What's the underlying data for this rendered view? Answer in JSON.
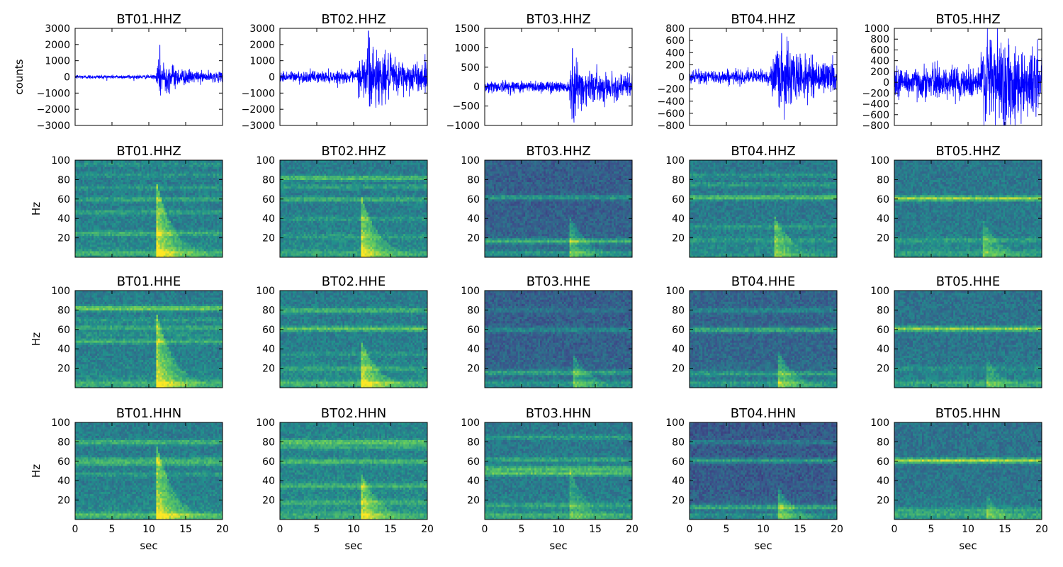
{
  "chart_data": {
    "type": "grid_of_plots",
    "stations": [
      "BT01",
      "BT02",
      "BT03",
      "BT04",
      "BT05"
    ],
    "x": {
      "label": "sec",
      "range": [
        0,
        20
      ],
      "ticks": [
        "0",
        "5",
        "10",
        "15",
        "20"
      ]
    },
    "rows": [
      {
        "type": "line",
        "component": "HHZ",
        "ylabel": "counts",
        "series_color": "#0000ff",
        "panels": [
          {
            "title": "BT01.HHZ",
            "ylim": [
              -3000,
              3000
            ],
            "yticks": [
              "−3000",
              "−2000",
              "−1000",
              "0",
              "1000",
              "2000",
              "3000"
            ],
            "signal": {
              "noise": 120,
              "onset": 11.0,
              "peak": 2000,
              "peak_at": 11.5,
              "decay": 2.0,
              "coda": 150
            }
          },
          {
            "title": "BT02.HHZ",
            "ylim": [
              -3000,
              3000
            ],
            "yticks": [
              "−3000",
              "−2000",
              "−1000",
              "0",
              "1000",
              "2000",
              "3000"
            ],
            "signal": {
              "noise": 350,
              "onset": 10.5,
              "peak": 2900,
              "peak_at": 12.0,
              "decay": 2.5,
              "coda": 400
            }
          },
          {
            "title": "BT03.HHZ",
            "ylim": [
              -1000,
              1500
            ],
            "yticks": [
              "−1000",
              "−500",
              "0",
              "500",
              "1000",
              "1500"
            ],
            "signal": {
              "noise": 150,
              "onset": 11.5,
              "peak": 1000,
              "peak_at": 11.9,
              "decay": 1.5,
              "coda": 150
            }
          },
          {
            "title": "BT04.HHZ",
            "ylim": [
              -800,
              800
            ],
            "yticks": [
              "−800",
              "−600",
              "−400",
              "−200",
              "0",
              "200",
              "400",
              "600",
              "800"
            ],
            "signal": {
              "noise": 110,
              "onset": 11.0,
              "peak": 730,
              "peak_at": 12.5,
              "decay": 2.2,
              "coda": 120
            }
          },
          {
            "title": "BT05.HHZ",
            "ylim": [
              -800,
              1000
            ],
            "yticks": [
              "−800",
              "−600",
              "−400",
              "−200",
              "0",
              "200",
              "400",
              "600",
              "800",
              "1000"
            ],
            "signal": {
              "noise": 280,
              "onset": 11.5,
              "peak": 800,
              "peak_at": 13.0,
              "decay": 2.5,
              "coda": 300
            }
          }
        ]
      },
      {
        "type": "heatmap",
        "component": "HHZ",
        "ylabel": "Hz",
        "ylim": [
          0,
          100
        ],
        "yticks": [
          "20",
          "40",
          "60",
          "80",
          "100"
        ],
        "panels": [
          {
            "title": "BT01.HHZ",
            "base": 0.42,
            "event": {
              "onset": 11.0,
              "strength": 0.55,
              "top": 80
            },
            "bands": [
              [
                5,
                0.15
              ],
              [
                25,
                0.2
              ],
              [
                47,
                0.15
              ],
              [
                60,
                0.18
              ],
              [
                72,
                0.12
              ],
              [
                85,
                0.1
              ],
              [
                96,
                0.1
              ]
            ]
          },
          {
            "title": "BT02.HHZ",
            "base": 0.42,
            "event": {
              "onset": 11.0,
              "strength": 0.5,
              "top": 65
            },
            "bands": [
              [
                5,
                0.1
              ],
              [
                22,
                0.1
              ],
              [
                40,
                0.12
              ],
              [
                60,
                0.22
              ],
              [
                73,
                0.15
              ],
              [
                82,
                0.3
              ]
            ]
          },
          {
            "title": "BT03.HHZ",
            "base": 0.3,
            "event": {
              "onset": 11.5,
              "strength": 0.35,
              "top": 45
            },
            "bands": [
              [
                5,
                0.15
              ],
              [
                17,
                0.32
              ],
              [
                62,
                0.25
              ]
            ]
          },
          {
            "title": "BT04.HHZ",
            "base": 0.4,
            "event": {
              "onset": 11.5,
              "strength": 0.4,
              "top": 45
            },
            "bands": [
              [
                18,
                0.12
              ],
              [
                32,
                0.12
              ],
              [
                62,
                0.32
              ],
              [
                75,
                0.15
              ],
              [
                85,
                0.12
              ]
            ]
          },
          {
            "title": "BT05.HHZ",
            "base": 0.4,
            "event": {
              "onset": 12.0,
              "strength": 0.3,
              "top": 40
            },
            "bands": [
              [
                5,
                0.1
              ],
              [
                18,
                0.15
              ],
              [
                61,
                0.45
              ]
            ]
          }
        ]
      },
      {
        "type": "heatmap",
        "component": "HHE",
        "ylabel": "Hz",
        "ylim": [
          0,
          100
        ],
        "yticks": [
          "20",
          "40",
          "60",
          "80",
          "100"
        ],
        "panels": [
          {
            "title": "BT01.HHE",
            "base": 0.42,
            "event": {
              "onset": 11.0,
              "strength": 0.55,
              "top": 80
            },
            "bands": [
              [
                5,
                0.15
              ],
              [
                48,
                0.22
              ],
              [
                55,
                0.1
              ],
              [
                62,
                0.2
              ],
              [
                70,
                0.12
              ],
              [
                82,
                0.38
              ]
            ]
          },
          {
            "title": "BT02.HHE",
            "base": 0.42,
            "event": {
              "onset": 11.0,
              "strength": 0.5,
              "top": 50
            },
            "bands": [
              [
                5,
                0.2
              ],
              [
                20,
                0.15
              ],
              [
                35,
                0.1
              ],
              [
                61,
                0.32
              ],
              [
                80,
                0.25
              ]
            ]
          },
          {
            "title": "BT03.HHE",
            "base": 0.3,
            "event": {
              "onset": 12.0,
              "strength": 0.35,
              "top": 35
            },
            "bands": [
              [
                5,
                0.15
              ],
              [
                16,
                0.25
              ],
              [
                60,
                0.18
              ],
              [
                80,
                0.1
              ]
            ]
          },
          {
            "title": "BT04.HHE",
            "base": 0.32,
            "event": {
              "onset": 12.0,
              "strength": 0.4,
              "top": 40
            },
            "bands": [
              [
                5,
                0.15
              ],
              [
                15,
                0.2
              ],
              [
                60,
                0.32
              ],
              [
                80,
                0.15
              ]
            ]
          },
          {
            "title": "BT05.HHE",
            "base": 0.38,
            "event": {
              "onset": 12.5,
              "strength": 0.25,
              "top": 30
            },
            "bands": [
              [
                5,
                0.15
              ],
              [
                20,
                0.1
              ],
              [
                61,
                0.45
              ]
            ]
          }
        ]
      },
      {
        "type": "heatmap",
        "component": "HHN",
        "ylabel": "Hz",
        "ylim": [
          0,
          100
        ],
        "yticks": [
          "20",
          "40",
          "60",
          "80",
          "100"
        ],
        "panels": [
          {
            "title": "BT01.HHN",
            "base": 0.42,
            "event": {
              "onset": 11.0,
              "strength": 0.55,
              "top": 80
            },
            "bands": [
              [
                5,
                0.2
              ],
              [
                47,
                0.12
              ],
              [
                58,
                0.22
              ],
              [
                62,
                0.2
              ],
              [
                80,
                0.25
              ]
            ]
          },
          {
            "title": "BT02.HHN",
            "base": 0.45,
            "event": {
              "onset": 11.0,
              "strength": 0.45,
              "top": 50
            },
            "bands": [
              [
                5,
                0.1
              ],
              [
                18,
                0.15
              ],
              [
                35,
                0.2
              ],
              [
                60,
                0.25
              ],
              [
                75,
                0.15
              ],
              [
                80,
                0.3
              ]
            ]
          },
          {
            "title": "BT03.HHN",
            "base": 0.4,
            "event": {
              "onset": 11.5,
              "strength": 0.25,
              "top": 55
            },
            "bands": [
              [
                5,
                0.15
              ],
              [
                15,
                0.15
              ],
              [
                48,
                0.32
              ],
              [
                53,
                0.3
              ],
              [
                62,
                0.2
              ],
              [
                85,
                0.15
              ]
            ]
          },
          {
            "title": "BT04.HHN",
            "base": 0.28,
            "event": {
              "onset": 12.0,
              "strength": 0.4,
              "top": 35
            },
            "bands": [
              [
                5,
                0.15
              ],
              [
                13,
                0.3
              ],
              [
                61,
                0.3
              ],
              [
                80,
                0.15
              ]
            ]
          },
          {
            "title": "BT05.HHN",
            "base": 0.38,
            "event": {
              "onset": 12.5,
              "strength": 0.25,
              "top": 25
            },
            "bands": [
              [
                5,
                0.15
              ],
              [
                10,
                0.15
              ],
              [
                61,
                0.5
              ]
            ]
          }
        ]
      }
    ]
  }
}
